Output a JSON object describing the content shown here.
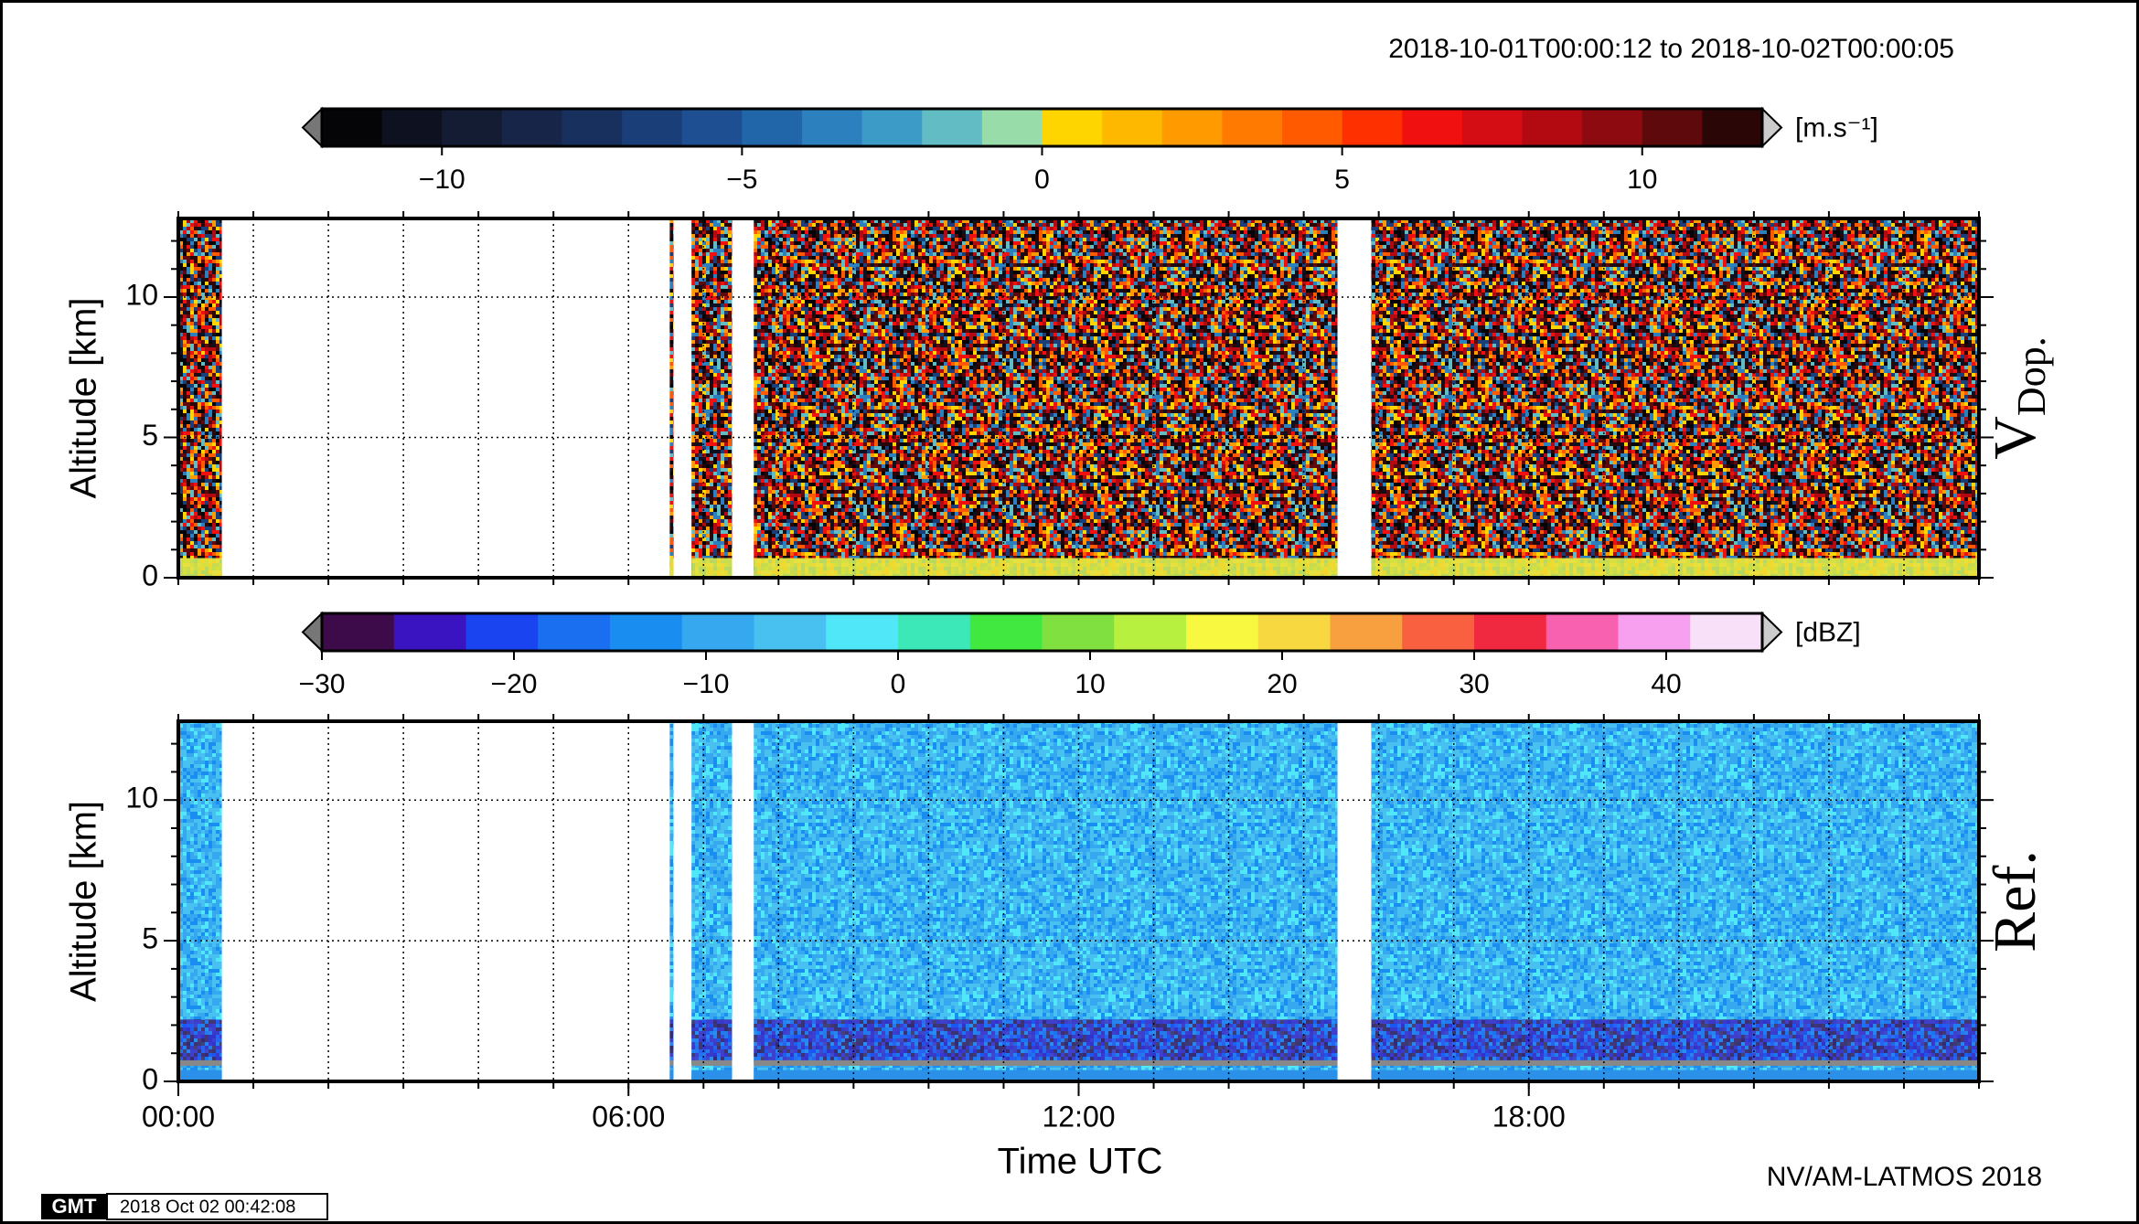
{
  "title": "2018-10-01T00:00:12 to 2018-10-02T00:00:05",
  "xlabel": "Time UTC",
  "credit": "NV/AM-LATMOS 2018",
  "logo": "GMT",
  "stamp": "2018 Oct 02 00:42:08",
  "chart_data": [
    {
      "type": "heatmap",
      "side_label": "V",
      "side_label_sub": "Dop.",
      "ylabel": "Altitude [km]",
      "xlim": [
        0,
        24
      ],
      "ylim": [
        0,
        12.8
      ],
      "yticks": [
        0,
        5,
        10
      ],
      "xminorticks": [
        0,
        1,
        2,
        3,
        4,
        5,
        6,
        7,
        8,
        9,
        10,
        11,
        12,
        13,
        14,
        15,
        16,
        17,
        18,
        19,
        20,
        21,
        22,
        23,
        24
      ],
      "yminorticks": [
        1,
        2,
        3,
        4,
        6,
        7,
        8,
        9,
        11,
        12
      ],
      "data_spans": [
        [
          0,
          0.58
        ],
        [
          6.55,
          6.6
        ],
        [
          6.84,
          7.38
        ],
        [
          7.67,
          15.45
        ],
        [
          15.9,
          24
        ]
      ],
      "colorbar": {
        "unit": "[m.s⁻¹]",
        "lim": [
          -12,
          12
        ],
        "ticks": [
          {
            "value": -10,
            "label": "−10"
          },
          {
            "value": -5,
            "label": "−5"
          },
          0,
          5,
          10
        ],
        "colors": [
          "#050508",
          "#0e1220",
          "#141c34",
          "#162548",
          "#18305e",
          "#1a3e78",
          "#1d4f92",
          "#2266aa",
          "#2c80bd",
          "#3d9cc7",
          "#62bcc4",
          "#98dda9",
          "#ffd500",
          "#ffb800",
          "#ff9a00",
          "#ff7a00",
          "#ff5a00",
          "#ff3000",
          "#f01010",
          "#d40c14",
          "#b30a12",
          "#8c0a10",
          "#5e0a0c",
          "#2a0606"
        ]
      }
    },
    {
      "type": "heatmap",
      "side_label": "Ref.",
      "ylabel": "Altitude [km]",
      "xlim": [
        0,
        24
      ],
      "ylim": [
        0,
        12.8
      ],
      "yticks": [
        0,
        5,
        10
      ],
      "xticks": [
        {
          "value": 0,
          "label": "00:00"
        },
        {
          "value": 6,
          "label": "06:00"
        },
        {
          "value": 12,
          "label": "12:00"
        },
        {
          "value": 18,
          "label": "18:00"
        }
      ],
      "xminorticks": [
        0,
        1,
        2,
        3,
        4,
        5,
        6,
        7,
        8,
        9,
        10,
        11,
        12,
        13,
        14,
        15,
        16,
        17,
        18,
        19,
        20,
        21,
        22,
        23,
        24
      ],
      "yminorticks": [
        1,
        2,
        3,
        4,
        6,
        7,
        8,
        9,
        11,
        12
      ],
      "data_spans": [
        [
          0,
          0.58
        ],
        [
          6.55,
          6.6
        ],
        [
          6.84,
          7.38
        ],
        [
          7.67,
          15.45
        ],
        [
          15.9,
          24
        ]
      ],
      "colorbar": {
        "unit": "[dBZ]",
        "lim": [
          -30,
          45
        ],
        "ticks": [
          {
            "value": -30,
            "label": "−30"
          },
          {
            "value": -20,
            "label": "−20"
          },
          {
            "value": -10,
            "label": "−10"
          },
          0,
          10,
          20,
          30,
          40
        ],
        "colors": [
          "#3d0a4a",
          "#3a14c0",
          "#1a44f0",
          "#1a6ef0",
          "#1a8ef0",
          "#35a8f0",
          "#48c0f0",
          "#50e8f8",
          "#3ce8b8",
          "#40e840",
          "#80e040",
          "#b8f040",
          "#f8f840",
          "#f8d840",
          "#f8a040",
          "#f86040",
          "#f02840",
          "#f860b0",
          "#f8a0f0",
          "#f8e0f8"
        ]
      }
    }
  ]
}
